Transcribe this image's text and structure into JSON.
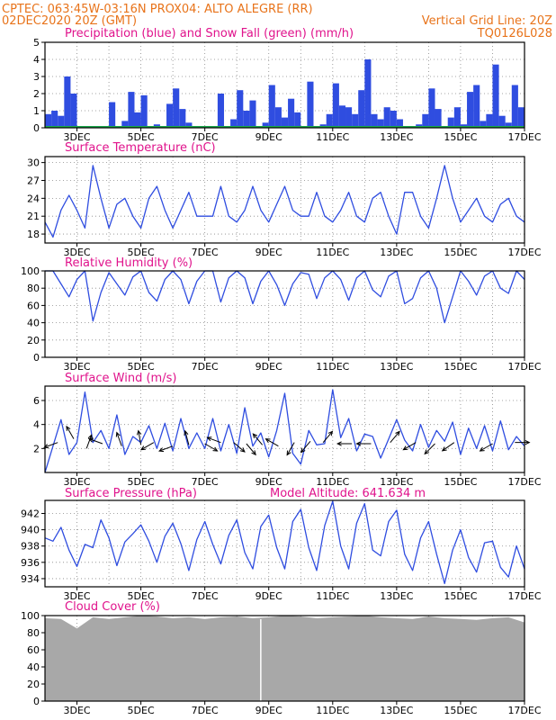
{
  "header": {
    "line1_left": "CPTEC:  063:45W-03:16N  PROX04: ALTO ALEGRE (RR)",
    "line2_left": "02DEC2020 20Z (GMT)",
    "line2_right": "Vertical Grid Line: 20Z",
    "line3_right": "TQ0126L028"
  },
  "colors": {
    "header": "#e8731a",
    "panel_title": "#e0138c",
    "series": "#2f4de0",
    "snow": "#1aa84a",
    "cloud": "#a8a8a8",
    "grid": "#888888"
  },
  "chart_data": [
    {
      "type": "bar",
      "title": "Precipitation (blue) and Snow Fall (green) (mm/h)",
      "ylim": [
        0,
        5
      ],
      "yticks": [
        "0",
        "1",
        "2",
        "3",
        "4",
        "5"
      ],
      "xticks": [
        "3DEC",
        "5DEC",
        "7DEC",
        "9DEC",
        "11DEC",
        "13DEC",
        "15DEC",
        "17DEC"
      ],
      "grid": true,
      "x": [
        0.1,
        0.3,
        0.5,
        0.7,
        0.9,
        1.1,
        1.3,
        1.5,
        1.7,
        1.9,
        2.1,
        2.3,
        2.5,
        2.7,
        2.9,
        3.1,
        3.3,
        3.5,
        3.7,
        3.9,
        4.1,
        4.3,
        4.5,
        4.7,
        4.9,
        5.1,
        5.3,
        5.5,
        5.7,
        5.9,
        6.1,
        6.3,
        6.5,
        6.7,
        6.9,
        7.1,
        7.3,
        7.5,
        7.7,
        7.9,
        8.1,
        8.3,
        8.5,
        8.7,
        8.9,
        9.1,
        9.3,
        9.5,
        9.7,
        9.9,
        10.1,
        10.3,
        10.5,
        10.7,
        10.9,
        11.1,
        11.3,
        11.5,
        11.7,
        11.9,
        12.1,
        12.3,
        12.5,
        12.7,
        12.9,
        13.1,
        13.3,
        13.5,
        13.7,
        13.9,
        14.1,
        14.3,
        14.5,
        14.7,
        14.9
      ],
      "series": [
        {
          "name": "Precipitation (blue)",
          "values": [
            0.8,
            1.0,
            0.7,
            3.0,
            2.0,
            0.1,
            0.0,
            0.0,
            0.0,
            0.0,
            1.5,
            0.1,
            0.4,
            2.1,
            0.9,
            1.9,
            0.1,
            0.2,
            0.0,
            1.4,
            2.3,
            1.1,
            0.3,
            0.0,
            0.0,
            0.1,
            0.0,
            2.0,
            0.1,
            0.5,
            2.2,
            1.0,
            1.6,
            0.0,
            0.3,
            2.5,
            1.2,
            0.6,
            1.7,
            0.9,
            0.0,
            2.7,
            0.0,
            0.2,
            0.8,
            2.6,
            1.3,
            1.2,
            0.8,
            2.2,
            4.0,
            0.8,
            0.5,
            1.2,
            1.0,
            0.5,
            0.0,
            0.0,
            0.2,
            0.8,
            2.3,
            1.1,
            0.1,
            0.6,
            1.2,
            0.2,
            2.1,
            2.5,
            0.4,
            0.8,
            3.7,
            0.7,
            0.3,
            2.5,
            1.2
          ]
        },
        {
          "name": "Snow Fall (green)",
          "values": [
            0,
            0,
            0,
            0,
            0,
            0,
            0,
            0,
            0,
            0,
            0,
            0,
            0,
            0,
            0,
            0,
            0,
            0,
            0,
            0,
            0,
            0,
            0,
            0,
            0,
            0,
            0,
            0,
            0,
            0,
            0,
            0,
            0,
            0,
            0,
            0,
            0,
            0,
            0,
            0,
            0,
            0,
            0,
            0,
            0,
            0,
            0,
            0,
            0,
            0,
            0,
            0,
            0,
            0,
            0,
            0,
            0,
            0,
            0,
            0,
            0,
            0,
            0,
            0,
            0,
            0,
            0,
            0,
            0,
            0,
            0,
            0,
            0,
            0,
            0
          ]
        }
      ]
    },
    {
      "type": "line",
      "title": "Surface Temperature (nC)",
      "ylim": [
        16.5,
        31
      ],
      "yticks": [
        "18",
        "21",
        "24",
        "27",
        "30"
      ],
      "xticks": [
        "3DEC",
        "5DEC",
        "7DEC",
        "9DEC",
        "11DEC",
        "13DEC",
        "15DEC",
        "17DEC"
      ],
      "grid": true,
      "x": [
        0,
        0.25,
        0.5,
        0.75,
        1.0,
        1.25,
        1.5,
        1.75,
        2.0,
        2.25,
        2.5,
        2.75,
        3.0,
        3.25,
        3.5,
        3.75,
        4.0,
        4.25,
        4.5,
        4.75,
        5.0,
        5.25,
        5.5,
        5.75,
        6.0,
        6.25,
        6.5,
        6.75,
        7.0,
        7.25,
        7.5,
        7.75,
        8.0,
        8.25,
        8.5,
        8.75,
        9.0,
        9.25,
        9.5,
        9.75,
        10.0,
        10.25,
        10.5,
        10.75,
        11.0,
        11.25,
        11.5,
        11.75,
        12.0,
        12.25,
        12.5,
        12.75,
        13.0,
        13.25,
        13.5,
        13.75,
        14.0,
        14.25,
        14.5,
        14.75,
        15.0
      ],
      "series": [
        {
          "name": "",
          "values": [
            20,
            17.5,
            22,
            24.5,
            22,
            19,
            29.5,
            24,
            19,
            23,
            24,
            21,
            19,
            24,
            26,
            22,
            19,
            22,
            25,
            21,
            21,
            21,
            26,
            21,
            20,
            22,
            26,
            22,
            20,
            23,
            26,
            22,
            21,
            21,
            25,
            21,
            20,
            22,
            25,
            21,
            20,
            24,
            25,
            21,
            18,
            25,
            25,
            21,
            19,
            24,
            29.5,
            24,
            20,
            22,
            24,
            21,
            20,
            23,
            24,
            21,
            20
          ]
        }
      ]
    },
    {
      "type": "line",
      "title": "Relative Humidity (%)",
      "ylim": [
        0,
        100
      ],
      "yticks": [
        "0",
        "20",
        "40",
        "60",
        "80",
        "100"
      ],
      "xticks": [
        "3DEC",
        "5DEC",
        "7DEC",
        "9DEC",
        "11DEC",
        "13DEC",
        "15DEC",
        "17DEC"
      ],
      "grid": true,
      "x": [
        0,
        0.25,
        0.5,
        0.75,
        1.0,
        1.25,
        1.5,
        1.75,
        2.0,
        2.25,
        2.5,
        2.75,
        3.0,
        3.25,
        3.5,
        3.75,
        4.0,
        4.25,
        4.5,
        4.75,
        5.0,
        5.25,
        5.5,
        5.75,
        6.0,
        6.25,
        6.5,
        6.75,
        7.0,
        7.25,
        7.5,
        7.75,
        8.0,
        8.25,
        8.5,
        8.75,
        9.0,
        9.25,
        9.5,
        9.75,
        10.0,
        10.25,
        10.5,
        10.75,
        11.0,
        11.25,
        11.5,
        11.75,
        12.0,
        12.25,
        12.5,
        12.75,
        13.0,
        13.25,
        13.5,
        13.75,
        14.0,
        14.25,
        14.5,
        14.75,
        15.0
      ],
      "series": [
        {
          "name": "",
          "values": [
            100,
            100,
            85,
            70,
            90,
            100,
            42,
            75,
            98,
            85,
            72,
            93,
            100,
            75,
            65,
            90,
            100,
            90,
            62,
            88,
            100,
            100,
            64,
            92,
            100,
            92,
            62,
            88,
            100,
            84,
            60,
            85,
            98,
            96,
            68,
            92,
            100,
            90,
            66,
            92,
            100,
            78,
            70,
            94,
            100,
            62,
            68,
            92,
            100,
            80,
            40,
            70,
            100,
            88,
            72,
            94,
            100,
            80,
            74,
            100,
            90
          ]
        }
      ]
    },
    {
      "type": "line",
      "title": "Surface Wind (m/s)",
      "ylim": [
        0,
        7.2
      ],
      "yticks": [
        "2",
        "4",
        "6"
      ],
      "xticks": [
        "3DEC",
        "5DEC",
        "7DEC",
        "9DEC",
        "11DEC",
        "13DEC",
        "15DEC",
        "17DEC"
      ],
      "grid": true,
      "x": [
        0,
        0.25,
        0.5,
        0.75,
        1.0,
        1.25,
        1.5,
        1.75,
        2.0,
        2.25,
        2.5,
        2.75,
        3.0,
        3.25,
        3.5,
        3.75,
        4.0,
        4.25,
        4.5,
        4.75,
        5.0,
        5.25,
        5.5,
        5.75,
        6.0,
        6.25,
        6.5,
        6.75,
        7.0,
        7.25,
        7.5,
        7.75,
        8.0,
        8.25,
        8.5,
        8.75,
        9.0,
        9.25,
        9.5,
        9.75,
        10.0,
        10.25,
        10.5,
        10.75,
        11.0,
        11.25,
        11.5,
        11.75,
        12.0,
        12.25,
        12.5,
        12.75,
        13.0,
        13.25,
        13.5,
        13.75,
        14.0,
        14.25,
        14.5,
        14.75,
        15.0
      ],
      "series": [
        {
          "name": "",
          "values": [
            0,
            2.2,
            4.4,
            1.5,
            2.5,
            6.7,
            2.5,
            3.5,
            2.0,
            4.8,
            1.5,
            3.0,
            2.5,
            3.9,
            2.0,
            4.1,
            1.8,
            4.5,
            2.0,
            3.3,
            2.0,
            4.5,
            1.8,
            4.0,
            1.6,
            5.4,
            2.2,
            3.3,
            1.3,
            3.5,
            6.6,
            1.6,
            0.7,
            3.5,
            2.3,
            2.4,
            6.9,
            2.9,
            4.5,
            1.8,
            3.2,
            3.0,
            1.2,
            2.8,
            4.4,
            2.7,
            1.8,
            4.0,
            2.1,
            3.5,
            2.6,
            4.2,
            1.5,
            3.7,
            2.0,
            3.9,
            1.8,
            4.3,
            1.9,
            3.0,
            2.2
          ]
        }
      ],
      "wind_barbs": [
        {
          "x": 0.4,
          "speed": 2.5,
          "dir": 250
        },
        {
          "x": 0.9,
          "speed": 2.8,
          "dir": 330
        },
        {
          "x": 1.3,
          "speed": 2.0,
          "dir": 20
        },
        {
          "x": 1.8,
          "speed": 2.4,
          "dir": 290
        },
        {
          "x": 2.4,
          "speed": 2.2,
          "dir": 340
        },
        {
          "x": 3.0,
          "speed": 2.3,
          "dir": 350
        },
        {
          "x": 3.4,
          "speed": 2.5,
          "dir": 240
        },
        {
          "x": 4.0,
          "speed": 2.2,
          "dir": 250
        },
        {
          "x": 4.5,
          "speed": 2.3,
          "dir": 345
        },
        {
          "x": 5.0,
          "speed": 2.4,
          "dir": 120
        },
        {
          "x": 5.5,
          "speed": 2.5,
          "dir": 290
        },
        {
          "x": 5.9,
          "speed": 2.5,
          "dir": 130
        },
        {
          "x": 6.3,
          "speed": 2.4,
          "dir": 140
        },
        {
          "x": 6.8,
          "speed": 2.3,
          "dir": 320
        },
        {
          "x": 7.3,
          "speed": 2.2,
          "dir": 300
        },
        {
          "x": 7.8,
          "speed": 2.5,
          "dir": 210
        },
        {
          "x": 8.3,
          "speed": 2.6,
          "dir": 220
        },
        {
          "x": 8.7,
          "speed": 2.5,
          "dir": 40
        },
        {
          "x": 9.6,
          "speed": 2.4,
          "dir": 270
        },
        {
          "x": 10.2,
          "speed": 2.4,
          "dir": 270
        },
        {
          "x": 10.8,
          "speed": 2.5,
          "dir": 40
        },
        {
          "x": 11.6,
          "speed": 2.5,
          "dir": 240
        },
        {
          "x": 12.2,
          "speed": 2.4,
          "dir": 225
        },
        {
          "x": 12.8,
          "speed": 2.5,
          "dir": 235
        },
        {
          "x": 14.0,
          "speed": 2.4,
          "dir": 240
        },
        {
          "x": 14.7,
          "speed": 2.5,
          "dir": 90
        }
      ]
    },
    {
      "type": "line",
      "title": "Surface Pressure (hPa)",
      "annotation": "Model Altitude: 641.634 m",
      "ylim": [
        933,
        943.6
      ],
      "yticks": [
        "934",
        "936",
        "938",
        "940",
        "942"
      ],
      "xticks": [
        "3DEC",
        "5DEC",
        "7DEC",
        "9DEC",
        "11DEC",
        "13DEC",
        "15DEC",
        "17DEC"
      ],
      "grid": true,
      "x": [
        0,
        0.25,
        0.5,
        0.75,
        1.0,
        1.25,
        1.5,
        1.75,
        2.0,
        2.25,
        2.5,
        2.75,
        3.0,
        3.25,
        3.5,
        3.75,
        4.0,
        4.25,
        4.5,
        4.75,
        5.0,
        5.25,
        5.5,
        5.75,
        6.0,
        6.25,
        6.5,
        6.75,
        7.0,
        7.25,
        7.5,
        7.75,
        8.0,
        8.25,
        8.5,
        8.75,
        9.0,
        9.25,
        9.5,
        9.75,
        10.0,
        10.25,
        10.5,
        10.75,
        11.0,
        11.25,
        11.5,
        11.75,
        12.0,
        12.25,
        12.5,
        12.75,
        13.0,
        13.25,
        13.5,
        13.75,
        14.0,
        14.25,
        14.5,
        14.75,
        15.0
      ],
      "series": [
        {
          "name": "",
          "values": [
            939,
            938.6,
            940.3,
            937.5,
            935.5,
            938.2,
            937.8,
            941.2,
            939,
            935.6,
            938.5,
            939.5,
            940.6,
            938.6,
            936,
            939.2,
            940.8,
            938.3,
            935,
            938.8,
            941,
            938.2,
            935.8,
            939.3,
            941.2,
            937.2,
            935.2,
            940.4,
            941.8,
            937.8,
            935.2,
            941,
            942.5,
            937.8,
            935,
            940.5,
            943.5,
            938,
            935.2,
            940.8,
            943.2,
            937.5,
            936.8,
            941,
            942.4,
            937,
            935,
            939,
            941,
            937,
            933.4,
            937.5,
            940,
            936.6,
            934.8,
            938.4,
            938.6,
            935.4,
            934.2,
            938,
            935.2
          ]
        }
      ]
    },
    {
      "type": "area",
      "title": "Cloud Cover (%)",
      "ylim": [
        0,
        100
      ],
      "yticks": [
        "0",
        "20",
        "40",
        "60",
        "80",
        "100"
      ],
      "xticks": [
        "3DEC",
        "5DEC",
        "7DEC",
        "9DEC",
        "11DEC",
        "13DEC",
        "15DEC",
        "17DEC"
      ],
      "grid": true,
      "x": [
        0,
        0.5,
        1.0,
        1.5,
        2.0,
        2.5,
        3.0,
        3.5,
        4.0,
        4.5,
        5.0,
        5.5,
        6.0,
        6.5,
        7.0,
        7.5,
        8.0,
        8.5,
        9.0,
        9.5,
        10.0,
        10.5,
        11.0,
        11.5,
        12.0,
        12.5,
        13.0,
        13.5,
        14.0,
        14.5,
        15.0
      ],
      "series": [
        {
          "name": "",
          "values": [
            97,
            96,
            85,
            98,
            96,
            98,
            100,
            99,
            97,
            98,
            96,
            98,
            99,
            97,
            98,
            100,
            99,
            97,
            98,
            99,
            100,
            98,
            97,
            96,
            99,
            97,
            96,
            95,
            97,
            98,
            92
          ]
        }
      ]
    }
  ]
}
